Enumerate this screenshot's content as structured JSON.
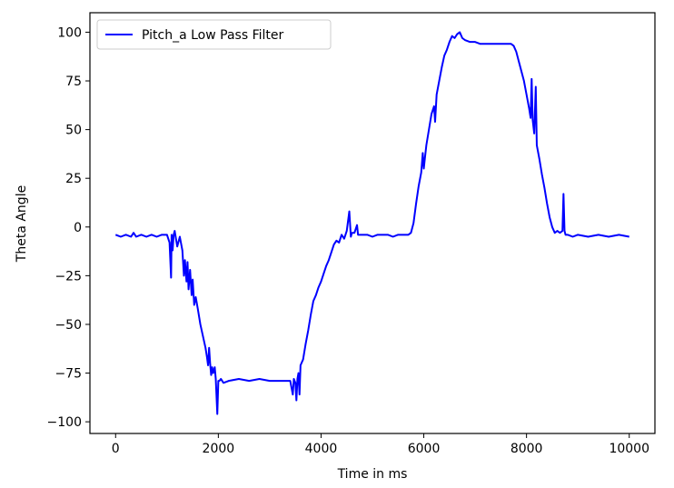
{
  "chart_data": {
    "type": "line",
    "title": "",
    "xlabel": "Time in ms",
    "ylabel": "Theta Angle",
    "xlim": [
      -500,
      10500
    ],
    "ylim": [
      -106,
      110
    ],
    "xticks": [
      0,
      2000,
      4000,
      6000,
      8000,
      10000
    ],
    "xtick_labels": [
      "0",
      "2000",
      "4000",
      "6000",
      "8000",
      "10000"
    ],
    "yticks": [
      -100,
      -75,
      -50,
      -25,
      0,
      25,
      50,
      75,
      100
    ],
    "ytick_labels": [
      "−100",
      "−75",
      "−50",
      "−25",
      "0",
      "25",
      "50",
      "75",
      "100"
    ],
    "grid": false,
    "legend_position": "top-left",
    "series": [
      {
        "name": "Pitch_a Low Pass Filter",
        "color": "#0000ff",
        "points": [
          [
            0,
            -4
          ],
          [
            100,
            -5
          ],
          [
            200,
            -4
          ],
          [
            300,
            -5
          ],
          [
            350,
            -3
          ],
          [
            400,
            -5
          ],
          [
            500,
            -4
          ],
          [
            600,
            -5
          ],
          [
            700,
            -4
          ],
          [
            800,
            -5
          ],
          [
            900,
            -4
          ],
          [
            1000,
            -4
          ],
          [
            1050,
            -8
          ],
          [
            1080,
            -26
          ],
          [
            1090,
            -4
          ],
          [
            1100,
            -5
          ],
          [
            1110,
            -12
          ],
          [
            1130,
            -4
          ],
          [
            1150,
            -2
          ],
          [
            1200,
            -10
          ],
          [
            1250,
            -5
          ],
          [
            1300,
            -12
          ],
          [
            1330,
            -25
          ],
          [
            1350,
            -17
          ],
          [
            1380,
            -28
          ],
          [
            1400,
            -18
          ],
          [
            1420,
            -32
          ],
          [
            1450,
            -22
          ],
          [
            1480,
            -35
          ],
          [
            1500,
            -27
          ],
          [
            1530,
            -40
          ],
          [
            1560,
            -36
          ],
          [
            1600,
            -42
          ],
          [
            1650,
            -50
          ],
          [
            1700,
            -56
          ],
          [
            1750,
            -62
          ],
          [
            1780,
            -67
          ],
          [
            1800,
            -71
          ],
          [
            1820,
            -62
          ],
          [
            1840,
            -70
          ],
          [
            1860,
            -76
          ],
          [
            1880,
            -72
          ],
          [
            1900,
            -75
          ],
          [
            1930,
            -72
          ],
          [
            1950,
            -78
          ],
          [
            1980,
            -96
          ],
          [
            2000,
            -79
          ],
          [
            2020,
            -79
          ],
          [
            2050,
            -78
          ],
          [
            2100,
            -80
          ],
          [
            2200,
            -79
          ],
          [
            2400,
            -78
          ],
          [
            2600,
            -79
          ],
          [
            2800,
            -78
          ],
          [
            3000,
            -79
          ],
          [
            3200,
            -79
          ],
          [
            3400,
            -79
          ],
          [
            3450,
            -86
          ],
          [
            3470,
            -78
          ],
          [
            3500,
            -80
          ],
          [
            3520,
            -89
          ],
          [
            3540,
            -78
          ],
          [
            3560,
            -75
          ],
          [
            3580,
            -86
          ],
          [
            3600,
            -71
          ],
          [
            3650,
            -68
          ],
          [
            3700,
            -60
          ],
          [
            3750,
            -53
          ],
          [
            3800,
            -45
          ],
          [
            3850,
            -38
          ],
          [
            3900,
            -35
          ],
          [
            3950,
            -31
          ],
          [
            4000,
            -28
          ],
          [
            4050,
            -24
          ],
          [
            4100,
            -20
          ],
          [
            4150,
            -17
          ],
          [
            4200,
            -13
          ],
          [
            4250,
            -9
          ],
          [
            4300,
            -7
          ],
          [
            4350,
            -8
          ],
          [
            4400,
            -4
          ],
          [
            4450,
            -6
          ],
          [
            4500,
            -2
          ],
          [
            4550,
            8
          ],
          [
            4580,
            -5
          ],
          [
            4600,
            -3
          ],
          [
            4650,
            -3
          ],
          [
            4700,
            1
          ],
          [
            4720,
            -4
          ],
          [
            4800,
            -4
          ],
          [
            4900,
            -4
          ],
          [
            5000,
            -5
          ],
          [
            5100,
            -4
          ],
          [
            5200,
            -4
          ],
          [
            5300,
            -4
          ],
          [
            5400,
            -5
          ],
          [
            5500,
            -4
          ],
          [
            5600,
            -4
          ],
          [
            5700,
            -4
          ],
          [
            5750,
            -3
          ],
          [
            5800,
            2
          ],
          [
            5850,
            12
          ],
          [
            5900,
            21
          ],
          [
            5950,
            28
          ],
          [
            5980,
            38
          ],
          [
            6000,
            30
          ],
          [
            6020,
            35
          ],
          [
            6050,
            42
          ],
          [
            6100,
            50
          ],
          [
            6150,
            58
          ],
          [
            6200,
            62
          ],
          [
            6220,
            54
          ],
          [
            6250,
            68
          ],
          [
            6300,
            75
          ],
          [
            6350,
            82
          ],
          [
            6400,
            88
          ],
          [
            6450,
            91
          ],
          [
            6500,
            95
          ],
          [
            6550,
            98
          ],
          [
            6600,
            97
          ],
          [
            6650,
            99
          ],
          [
            6700,
            100
          ],
          [
            6750,
            97
          ],
          [
            6800,
            96
          ],
          [
            6900,
            95
          ],
          [
            7000,
            95
          ],
          [
            7100,
            94
          ],
          [
            7200,
            94
          ],
          [
            7300,
            94
          ],
          [
            7400,
            94
          ],
          [
            7500,
            94
          ],
          [
            7600,
            94
          ],
          [
            7700,
            94
          ],
          [
            7750,
            93
          ],
          [
            7800,
            90
          ],
          [
            7850,
            85
          ],
          [
            7900,
            80
          ],
          [
            7950,
            75
          ],
          [
            8000,
            68
          ],
          [
            8050,
            61
          ],
          [
            8080,
            56
          ],
          [
            8100,
            76
          ],
          [
            8120,
            55
          ],
          [
            8150,
            48
          ],
          [
            8180,
            72
          ],
          [
            8200,
            42
          ],
          [
            8250,
            35
          ],
          [
            8300,
            27
          ],
          [
            8350,
            20
          ],
          [
            8400,
            12
          ],
          [
            8450,
            5
          ],
          [
            8500,
            0
          ],
          [
            8550,
            -3
          ],
          [
            8600,
            -2
          ],
          [
            8650,
            -3
          ],
          [
            8700,
            -2
          ],
          [
            8720,
            17
          ],
          [
            8740,
            -2
          ],
          [
            8760,
            -4
          ],
          [
            8800,
            -4
          ],
          [
            8900,
            -5
          ],
          [
            9000,
            -4
          ],
          [
            9200,
            -5
          ],
          [
            9400,
            -4
          ],
          [
            9600,
            -5
          ],
          [
            9800,
            -4
          ],
          [
            10000,
            -5
          ]
        ]
      }
    ]
  }
}
